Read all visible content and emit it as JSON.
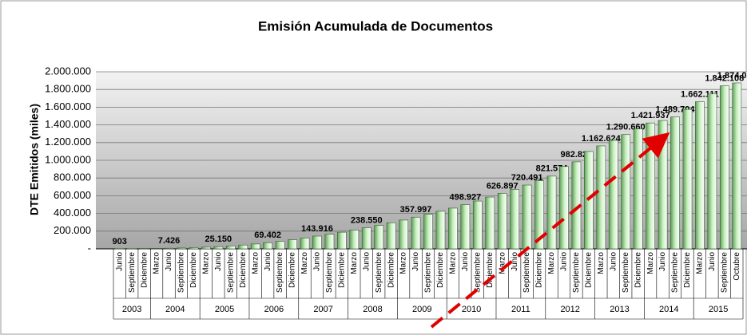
{
  "chart_data": {
    "type": "bar",
    "title": "Emisión Acumulada de Documentos",
    "y_label": "DTE Emitidos (miles)",
    "groups": [
      {
        "label": "2003",
        "categories": [
          "Junio",
          "Septiembre",
          "Diciembre"
        ]
      },
      {
        "label": "2004",
        "categories": [
          "Marzo",
          "Junio",
          "Septiembre",
          "Diciembre"
        ]
      },
      {
        "label": "2005",
        "categories": [
          "Marzo",
          "Junio",
          "Septiembre",
          "Diciembre"
        ]
      },
      {
        "label": "2006",
        "categories": [
          "Marzo",
          "Junio",
          "Septiembre",
          "Diciembre"
        ]
      },
      {
        "label": "2007",
        "categories": [
          "Marzo",
          "Junio",
          "Septiembre",
          "Diciembre"
        ]
      },
      {
        "label": "2008",
        "categories": [
          "Marzo",
          "Junio",
          "Septiembre",
          "Diciembre"
        ]
      },
      {
        "label": "2009",
        "categories": [
          "Marzo",
          "Junio",
          "Septiembre",
          "Diciembre"
        ]
      },
      {
        "label": "2010",
        "categories": [
          "Marzo",
          "Junio",
          "Septiembre",
          "Diciembre"
        ]
      },
      {
        "label": "2011",
        "categories": [
          "Marzo",
          "Junio",
          "Septiembre",
          "Diciembre"
        ]
      },
      {
        "label": "2012",
        "categories": [
          "Marzo",
          "Junio",
          "Septiembre",
          "Diciembre"
        ]
      },
      {
        "label": "2013",
        "categories": [
          "Marzo",
          "Junio",
          "Septiembre",
          "Diciembre"
        ]
      },
      {
        "label": "2014",
        "categories": [
          "Marzo",
          "Junio",
          "Septiembre",
          "Diciembre"
        ]
      },
      {
        "label": "2015",
        "categories": [
          "Marzo",
          "Junio",
          "Septiembre",
          "Octubre"
        ]
      }
    ],
    "values": [
      903,
      2000,
      4000,
      5500,
      7426,
      10000,
      14000,
      19000,
      25150,
      33000,
      43000,
      55000,
      69402,
      85000,
      103000,
      122000,
      143916,
      165000,
      188000,
      212000,
      238550,
      265000,
      295000,
      325000,
      357997,
      390000,
      425000,
      460000,
      498927,
      540000,
      585000,
      626897,
      672000,
      720491,
      770000,
      821574,
      930000,
      982829,
      1100000,
      1162624,
      1225000,
      1290660,
      1355000,
      1421937,
      1450000,
      1489704,
      1575000,
      1662111,
      1750000,
      1842108,
      1874020
    ],
    "value_labels": [
      "903",
      null,
      null,
      null,
      "7.426",
      null,
      null,
      null,
      "25.150",
      null,
      null,
      null,
      "69.402",
      null,
      null,
      null,
      "143.916",
      null,
      null,
      null,
      "238.550",
      null,
      null,
      null,
      "357.997",
      null,
      null,
      null,
      "498.927",
      null,
      null,
      "626.897",
      null,
      "720.491",
      null,
      "821.574",
      null,
      "982.829",
      null,
      "1.162.624",
      null,
      "1.290.660",
      null,
      "1.421.937",
      null,
      "1.489.704",
      null,
      "1.662.111",
      null,
      "1.842.108",
      "1.874.020"
    ],
    "color": "#a8e0a0",
    "ylim": [
      0,
      2000000
    ],
    "yticks": [
      {
        "value": 0,
        "label": "-"
      },
      {
        "value": 200000,
        "label": "200.000"
      },
      {
        "value": 400000,
        "label": "400.000"
      },
      {
        "value": 600000,
        "label": "600.000"
      },
      {
        "value": 800000,
        "label": "800.000"
      },
      {
        "value": 1000000,
        "label": "1.000.000"
      },
      {
        "value": 1200000,
        "label": "1.200.000"
      },
      {
        "value": 1400000,
        "label": "1.400.000"
      },
      {
        "value": 1600000,
        "label": "1.600.000"
      },
      {
        "value": 1800000,
        "label": "1.800.000"
      },
      {
        "value": 2000000,
        "label": "2.000.000"
      }
    ],
    "grid": true
  }
}
